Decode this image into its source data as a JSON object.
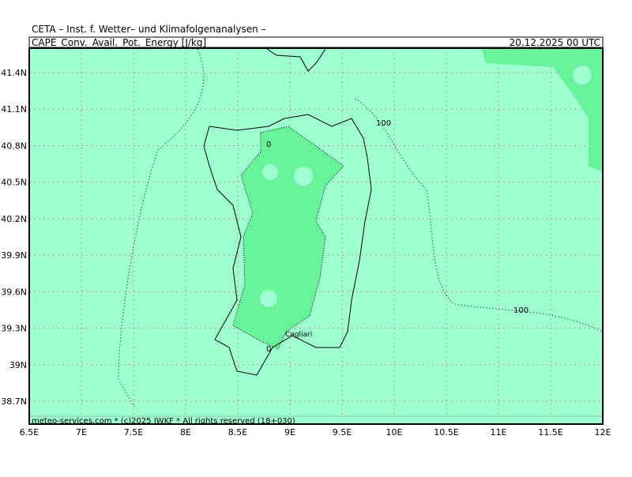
{
  "header": {
    "institute": "CETA – Inst. f. Wetter– und Klimafolgenanalysen –",
    "field": "CAPE_Conv._Avail._Pot._Energy [J/kg]",
    "valid_time": "20.12.2025  00 UTC"
  },
  "map": {
    "lon_labels": [
      "6.5E",
      "7E",
      "7.5E",
      "8E",
      "8.5E",
      "9E",
      "9.5E",
      "10E",
      "10.5E",
      "11E",
      "11.5E",
      "12E"
    ],
    "lat_labels": [
      "41.4N",
      "41.1N",
      "40.8N",
      "40.5N",
      "40.2N",
      "39.9N",
      "39.6N",
      "39.3N",
      "39N",
      "38.7N"
    ],
    "contour_labels": [
      "100",
      "100",
      "0",
      "0"
    ],
    "city": "Cagliari"
  },
  "footer": "meteo-services.com * (c)2025 IWKF * All rights reserved (18+030)"
}
